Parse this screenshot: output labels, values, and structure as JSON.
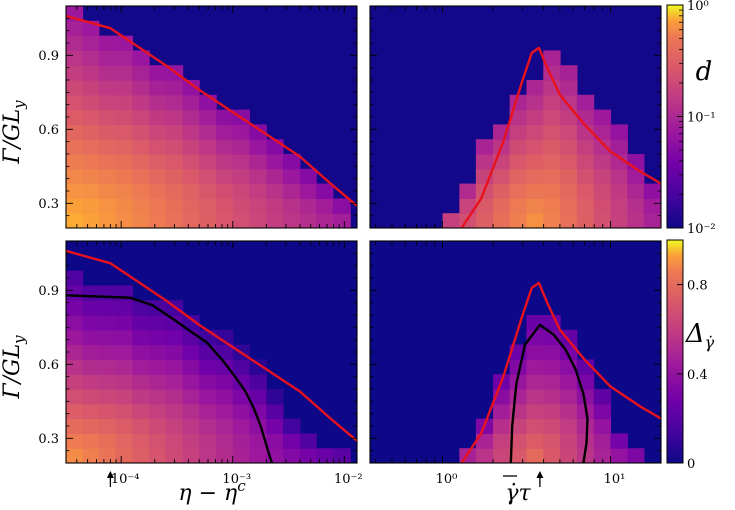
{
  "chart_data": {
    "type": "heatmap",
    "colormap": "plasma",
    "panels": [
      {
        "id": "top-left",
        "x_scale": "log",
        "xlim": [
          3.2e-05,
          0.013
        ],
        "ylim": [
          0.2,
          1.1
        ],
        "yticks": [
          0.3,
          0.6,
          0.9
        ],
        "ylabel": "Γ/GL_y",
        "xticks": [],
        "xticklabels": [],
        "color_scale": "log",
        "x_edges": [
          3.2e-05,
          4.5e-05,
          6.3e-05,
          8.9e-05,
          0.000126,
          0.000178,
          0.00025,
          0.000355,
          0.0005,
          0.00071,
          0.001,
          0.00141,
          0.002,
          0.00282,
          0.004,
          0.0056,
          0.0079,
          0.0113,
          0.013
        ],
        "y_edges": [
          0.2,
          0.26,
          0.32,
          0.38,
          0.44,
          0.5,
          0.56,
          0.62,
          0.68,
          0.74,
          0.8,
          0.86,
          0.92,
          0.98,
          1.04,
          1.1
        ],
        "frontier_levels": [
          15,
          14,
          13,
          13,
          12,
          11,
          11,
          10,
          9,
          8,
          8,
          7,
          6,
          5,
          4,
          3,
          2,
          0
        ],
        "center_value": 0.42,
        "edge_value": 0.035,
        "background_value": 0.0105,
        "red_curve": {
          "x": [
            3.2e-05,
            8e-05,
            0.00025,
            0.0005,
            0.001,
            0.002,
            0.004,
            0.008,
            0.013
          ],
          "y": [
            1.06,
            1.01,
            0.86,
            0.76,
            0.67,
            0.58,
            0.49,
            0.37,
            0.29
          ]
        }
      },
      {
        "id": "top-right",
        "x_scale": "log",
        "xlim": [
          0.37,
          20
        ],
        "ylim": [
          0.2,
          1.1
        ],
        "yticks": [],
        "xticks": [],
        "xticklabels": [],
        "color_scale": "log",
        "x_edges": [
          0.37,
          0.76,
          1.0,
          1.26,
          1.58,
          2.0,
          2.51,
          3.16,
          3.98,
          5.01,
          6.31,
          7.94,
          10.0,
          12.6,
          15.8,
          20.0
        ],
        "y_edges": [
          0.2,
          0.26,
          0.32,
          0.38,
          0.44,
          0.5,
          0.56,
          0.62,
          0.68,
          0.74,
          0.8,
          0.86,
          0.92,
          0.98,
          1.04,
          1.1
        ],
        "column_tops": [
          0,
          0,
          1,
          3,
          6,
          7,
          9,
          10,
          12,
          11,
          9,
          8,
          7,
          5,
          3
        ],
        "peak_x": 3.6,
        "center_value": 0.3,
        "edge_value": 0.04,
        "background_value": 0.0105,
        "red_curve": {
          "x": [
            1.3,
            1.7,
            2.3,
            3.0,
            3.4,
            3.75,
            4.2,
            5.0,
            7.0,
            10.0,
            15.0,
            20.0
          ],
          "y": [
            0.2,
            0.32,
            0.55,
            0.8,
            0.91,
            0.93,
            0.85,
            0.74,
            0.62,
            0.51,
            0.43,
            0.38
          ]
        }
      },
      {
        "id": "bottom-left",
        "x_scale": "log",
        "xlim": [
          3.2e-05,
          0.013
        ],
        "ylim": [
          0.2,
          1.1
        ],
        "yticks": [
          0.3,
          0.6,
          0.9
        ],
        "ylabel": "Γ/GL_y",
        "xticks": [
          0.0001,
          0.001,
          0.01
        ],
        "xticklabels": [
          "10⁻⁴",
          "10⁻³",
          "10⁻²"
        ],
        "xlabel": "η − η^c",
        "arrow_x": 8e-05,
        "color_scale": "linear",
        "x_edges": [
          3.2e-05,
          4.5e-05,
          6.3e-05,
          8.9e-05,
          0.000126,
          0.000178,
          0.00025,
          0.000355,
          0.0005,
          0.00071,
          0.001,
          0.00141,
          0.002,
          0.00282,
          0.004,
          0.0056,
          0.0079,
          0.0113,
          0.013
        ],
        "y_edges": [
          0.2,
          0.26,
          0.32,
          0.38,
          0.44,
          0.5,
          0.56,
          0.62,
          0.68,
          0.74,
          0.8,
          0.86,
          0.92,
          0.98,
          1.04,
          1.1
        ],
        "frontier_levels": [
          13,
          12,
          12,
          12,
          11,
          11,
          11,
          10,
          9,
          9,
          8,
          7,
          5,
          3,
          2,
          1,
          1,
          0
        ],
        "center_value": 0.72,
        "edge_value": 0.06,
        "background_value": 0.0,
        "red_curve": {
          "x": [
            3.2e-05,
            8e-05,
            0.00025,
            0.0005,
            0.001,
            0.002,
            0.004,
            0.008,
            0.013
          ],
          "y": [
            1.06,
            1.01,
            0.86,
            0.76,
            0.67,
            0.58,
            0.49,
            0.37,
            0.29
          ]
        },
        "black_curve": {
          "x": [
            3.2e-05,
            0.00012,
            0.00019,
            0.0003,
            0.00043,
            0.00058,
            0.0008,
            0.00105,
            0.0013,
            0.00155,
            0.00178,
            0.00195,
            0.0021,
            0.00225
          ],
          "y": [
            0.88,
            0.87,
            0.84,
            0.78,
            0.73,
            0.69,
            0.62,
            0.55,
            0.49,
            0.42,
            0.35,
            0.29,
            0.24,
            0.2
          ]
        }
      },
      {
        "id": "bottom-right",
        "x_scale": "log",
        "xlim": [
          0.37,
          20
        ],
        "ylim": [
          0.2,
          1.1
        ],
        "yticks": [],
        "xticks": [
          1,
          10
        ],
        "xticklabels": [
          "10⁰",
          "10¹"
        ],
        "xlabel": "γ̇τ",
        "arrow_x": 3.8,
        "color_scale": "linear",
        "x_edges": [
          0.37,
          0.76,
          1.0,
          1.26,
          1.58,
          2.0,
          2.51,
          3.16,
          3.98,
          5.01,
          6.31,
          7.94,
          10.0,
          12.6,
          15.8,
          20.0
        ],
        "y_edges": [
          0.2,
          0.26,
          0.32,
          0.38,
          0.44,
          0.5,
          0.56,
          0.62,
          0.68,
          0.74,
          0.8,
          0.86,
          0.92,
          0.98,
          1.04,
          1.1
        ],
        "column_tops": [
          0,
          0,
          0,
          1,
          3,
          6,
          8,
          10,
          10,
          9,
          7,
          5,
          2,
          1,
          0
        ],
        "peak_x": 3.6,
        "center_value": 0.62,
        "edge_value": 0.1,
        "background_value": 0.0,
        "red_curve": {
          "x": [
            1.3,
            1.7,
            2.3,
            3.0,
            3.4,
            3.75,
            4.2,
            5.0,
            7.0,
            10.0,
            15.0,
            20.0
          ],
          "y": [
            0.2,
            0.32,
            0.55,
            0.8,
            0.91,
            0.93,
            0.85,
            0.74,
            0.62,
            0.51,
            0.43,
            0.38
          ]
        },
        "black_curve": {
          "x": [
            2.55,
            2.6,
            2.75,
            3.1,
            3.8,
            4.6,
            5.4,
            6.2,
            6.9,
            7.3,
            7.2,
            6.9
          ],
          "y": [
            0.2,
            0.35,
            0.52,
            0.68,
            0.76,
            0.72,
            0.66,
            0.58,
            0.48,
            0.38,
            0.28,
            0.2
          ]
        }
      }
    ],
    "colorbars": [
      {
        "id": "top",
        "label": "d",
        "scale": "log",
        "range": [
          0.01,
          1.0
        ],
        "ticks": [
          0.01,
          0.1,
          1.0
        ],
        "ticklabels": [
          "10⁻²",
          "10⁻¹",
          "10⁰"
        ]
      },
      {
        "id": "bottom",
        "label": "Δγ̇",
        "scale": "linear",
        "range": [
          0.0,
          1.0
        ],
        "ticks": [
          0,
          0.4,
          0.8
        ],
        "ticklabels": [
          "0",
          "0.4",
          "0.8"
        ]
      }
    ]
  }
}
